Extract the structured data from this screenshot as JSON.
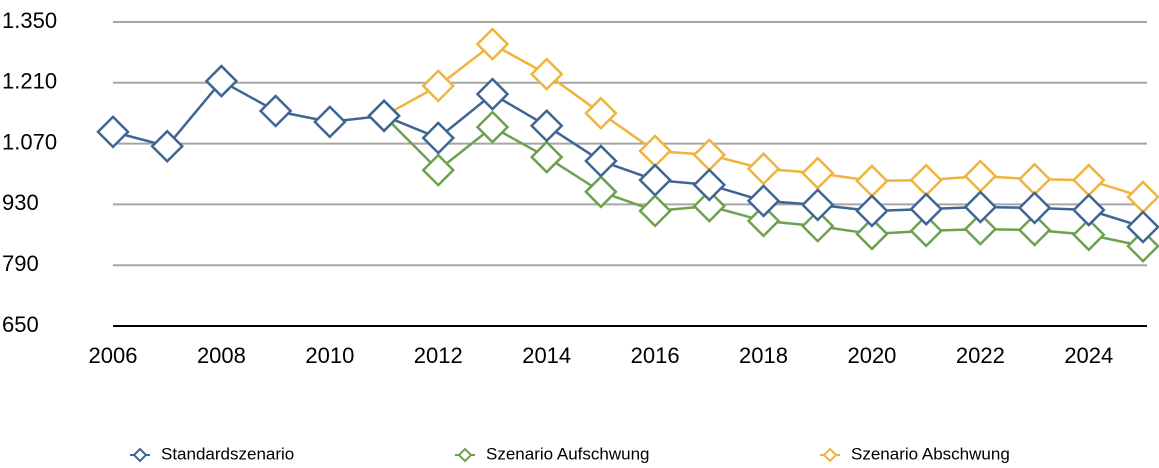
{
  "chart_data": {
    "type": "line",
    "x": [
      2006,
      2007,
      2008,
      2009,
      2010,
      2011,
      2012,
      2013,
      2014,
      2015,
      2016,
      2017,
      2018,
      2019,
      2020,
      2021,
      2022,
      2023,
      2024,
      2025
    ],
    "series": [
      {
        "name": "Standardszenario",
        "color": "#3e6594",
        "values": [
          1097,
          1064,
          1214,
          1145,
          1120,
          1134,
          1083,
          1184,
          1111,
          1030,
          986,
          975,
          938,
          929,
          915,
          919,
          924,
          922,
          917,
          878
        ]
      },
      {
        "name": "Szenario Aufschwung",
        "color": "#6ea14f",
        "values": [
          null,
          null,
          null,
          null,
          null,
          1134,
          1009,
          1108,
          1039,
          959,
          915,
          926,
          892,
          880,
          862,
          869,
          873,
          871,
          860,
          834
        ]
      },
      {
        "name": "Szenario Abschwung",
        "color": "#f0b43c",
        "values": [
          null,
          null,
          null,
          null,
          null,
          1134,
          1203,
          1299,
          1230,
          1140,
          1053,
          1044,
          1012,
          1002,
          984,
          986,
          995,
          988,
          986,
          947
        ]
      }
    ],
    "xlim": [
      2006,
      2025
    ],
    "xticks": [
      2006,
      2008,
      2010,
      2012,
      2014,
      2016,
      2018,
      2020,
      2022,
      2024
    ],
    "ylim": [
      650,
      1350
    ],
    "yticks": [
      650,
      790,
      930,
      {
        "value": 1070,
        "label": "1.070"
      },
      {
        "value": 1210,
        "label": "1.210"
      },
      {
        "value": 1350,
        "label": "1.350"
      }
    ],
    "grid": true,
    "legend": "bottom"
  }
}
